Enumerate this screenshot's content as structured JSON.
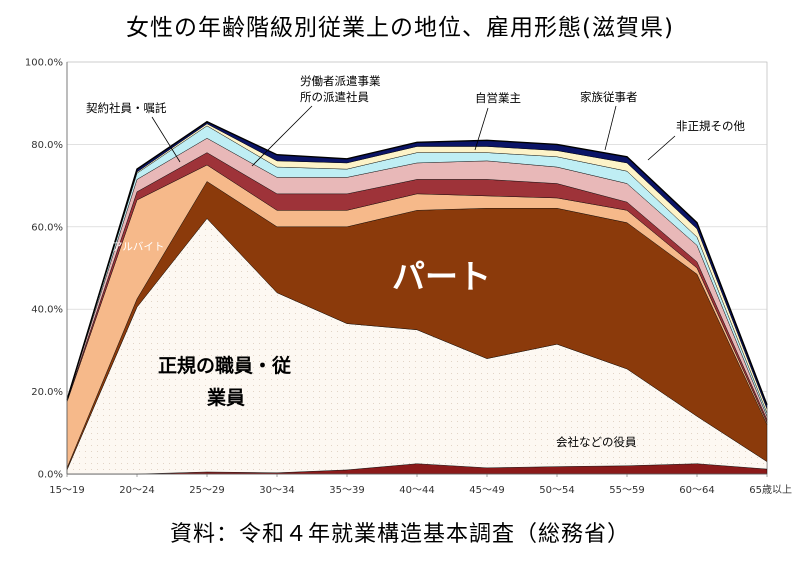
{
  "title": "女性の年齢階級別従業上の地位、雇用形態(滋賀県)",
  "source": "資料：令和４年就業構造基本調査（総務省）",
  "chart_data": {
    "type": "area",
    "stacked": true,
    "categories": [
      "15〜19",
      "20〜24",
      "25〜29",
      "30〜34",
      "35〜39",
      "40〜44",
      "45〜49",
      "50〜54",
      "55〜59",
      "60〜64",
      "65歳以上"
    ],
    "yticks": [
      "0.0%",
      "20.0%",
      "40.0%",
      "60.0%",
      "80.0%",
      "100.0%"
    ],
    "ylim": [
      0,
      100
    ],
    "series": [
      {
        "name": "会社などの役員",
        "color": "#8b1a1a",
        "values": [
          0,
          0,
          0.5,
          0.3,
          1,
          2.5,
          1.5,
          1.8,
          2,
          2.5,
          1.2
        ]
      },
      {
        "name": "正規の職員・従業員",
        "color": "#fdf8f2",
        "values": [
          1,
          40.5,
          61.5,
          43.7,
          35.5,
          32.5,
          26.5,
          29.7,
          23.5,
          11.5,
          1.8
        ]
      },
      {
        "name": "パート",
        "color": "#8b3a0b",
        "values": [
          0.5,
          2,
          9,
          16,
          23.5,
          29,
          36.5,
          33,
          35.5,
          34.5,
          9
        ]
      },
      {
        "name": "アルバイト",
        "color": "#f6b98a",
        "values": [
          16,
          24,
          4,
          4,
          4,
          4,
          3,
          2.5,
          3,
          1.5,
          0.5
        ]
      },
      {
        "name": "契約社員・嘱託",
        "color": "#9e3339",
        "values": [
          0.3,
          2,
          3,
          4,
          4,
          3.5,
          4,
          3.5,
          2,
          1.5,
          0.7
        ]
      },
      {
        "name": "労働者派遣事業所の派遣社員",
        "color": "#e8b8b8",
        "values": [
          0.2,
          3,
          3.5,
          4,
          4,
          4,
          4.5,
          4,
          4.5,
          4,
          0.8
        ]
      },
      {
        "name": "自営業主",
        "color": "#bfeef4",
        "values": [
          0,
          1.5,
          3,
          2.5,
          2,
          2.5,
          2,
          2.5,
          3,
          2,
          0.8
        ]
      },
      {
        "name": "家族従事者",
        "color": "#fdf3c8",
        "values": [
          0,
          0.3,
          0.5,
          1.5,
          1.5,
          1.5,
          1.5,
          1.5,
          2,
          2,
          1
        ]
      },
      {
        "name": "非正規その他",
        "color": "#0b1466",
        "values": [
          0,
          0.7,
          0.5,
          1.5,
          1,
          1,
          1.5,
          1.5,
          1.5,
          1.5,
          1
        ]
      }
    ],
    "labels": {
      "part": "パート",
      "regular": "正規の職員・従",
      "regular2": "業員",
      "arbeit": "アルバイト",
      "officer": "会社などの役員",
      "contract": "契約社員・嘱託",
      "dispatch1": "労働者派遣事業",
      "dispatch2": "所の派遣社員",
      "self": "自営業主",
      "family": "家族従事者",
      "other": "非正規その他"
    }
  }
}
